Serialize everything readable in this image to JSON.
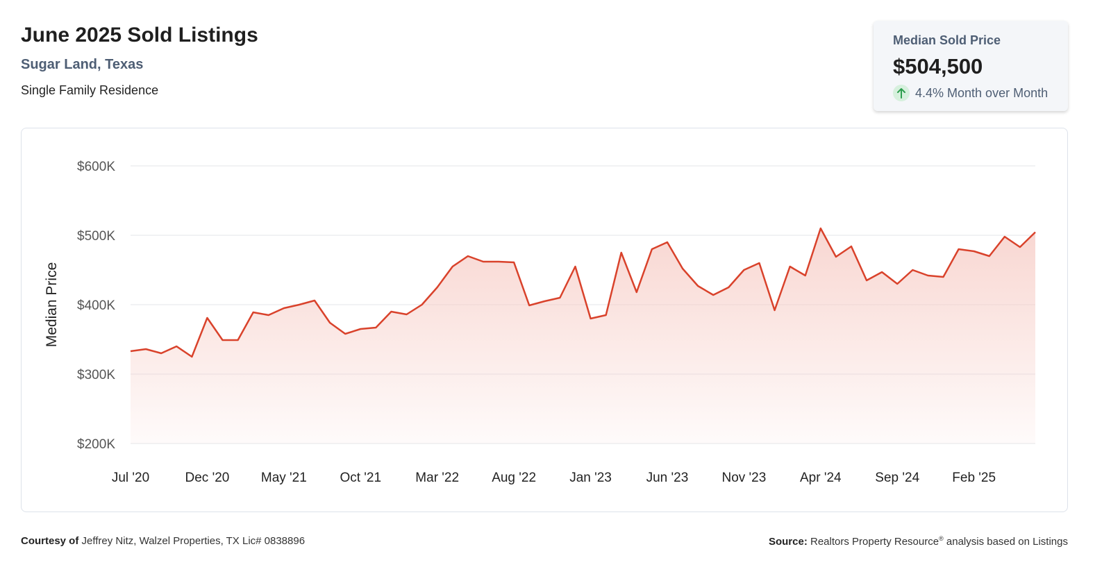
{
  "header": {
    "title": "June 2025 Sold Listings",
    "location": "Sugar Land, Texas",
    "property_type": "Single Family Residence"
  },
  "stat_card": {
    "label": "Median Sold Price",
    "value": "$504,500",
    "change": "4.4% Month over Month",
    "change_direction": "up",
    "change_color": "#2e9e4f"
  },
  "footer": {
    "courtesy_label": "Courtesy of",
    "courtesy_text": "Jeffrey Nitz, Walzel Properties, TX Lic# 0838896",
    "source_label": "Source:",
    "source_text_main": "Realtors Property Resource",
    "source_text_sup": "®",
    "source_text_tail": " analysis based on Listings"
  },
  "colors": {
    "line": "#d9422b",
    "area_top": "#f6c9c2",
    "grid": "#e3e6ea",
    "text_muted": "#4e5e74"
  },
  "chart_data": {
    "type": "area",
    "xlabel": "",
    "ylabel": "Median Price",
    "ylim": [
      200000,
      600000
    ],
    "y_ticks": [
      200000,
      300000,
      400000,
      500000,
      600000
    ],
    "y_tick_labels": [
      "$200K",
      "$300K",
      "$400K",
      "$500K",
      "$600K"
    ],
    "x_tick_labels": [
      "Jul '20",
      "Dec '20",
      "May '21",
      "Oct '21",
      "Mar '22",
      "Aug '22",
      "Jan '23",
      "Jun '23",
      "Nov '23",
      "Apr '24",
      "Sep '24",
      "Feb '25"
    ],
    "x_tick_every": 5,
    "grid": true,
    "legend": "none",
    "x": [
      "2020-07",
      "2020-08",
      "2020-09",
      "2020-10",
      "2020-11",
      "2020-12",
      "2021-01",
      "2021-02",
      "2021-03",
      "2021-04",
      "2021-05",
      "2021-06",
      "2021-07",
      "2021-08",
      "2021-09",
      "2021-10",
      "2021-11",
      "2021-12",
      "2022-01",
      "2022-02",
      "2022-03",
      "2022-04",
      "2022-05",
      "2022-06",
      "2022-07",
      "2022-08",
      "2022-09",
      "2022-10",
      "2022-11",
      "2022-12",
      "2023-01",
      "2023-02",
      "2023-03",
      "2023-04",
      "2023-05",
      "2023-06",
      "2023-07",
      "2023-08",
      "2023-09",
      "2023-10",
      "2023-11",
      "2023-12",
      "2024-01",
      "2024-02",
      "2024-03",
      "2024-04",
      "2024-05",
      "2024-06",
      "2024-07",
      "2024-08",
      "2024-09",
      "2024-10",
      "2024-11",
      "2024-12",
      "2025-01",
      "2025-02",
      "2025-03",
      "2025-04",
      "2025-05",
      "2025-06"
    ],
    "series": [
      {
        "values": [
          333000,
          336000,
          330000,
          340000,
          325000,
          381000,
          349000,
          349000,
          389000,
          385000,
          395000,
          400000,
          406000,
          374000,
          358000,
          365000,
          367000,
          390000,
          386000,
          400000,
          425000,
          455000,
          470000,
          462000,
          462000,
          461000,
          399000,
          405000,
          410000,
          455000,
          380000,
          385000,
          475000,
          418000,
          480000,
          490000,
          452000,
          427000,
          414000,
          425000,
          450000,
          460000,
          392000,
          455000,
          442000,
          510000,
          469000,
          484000,
          435000,
          447000,
          430000,
          450000,
          442000,
          440000,
          480000,
          477000,
          470000,
          498000,
          483000,
          504500
        ]
      }
    ]
  }
}
